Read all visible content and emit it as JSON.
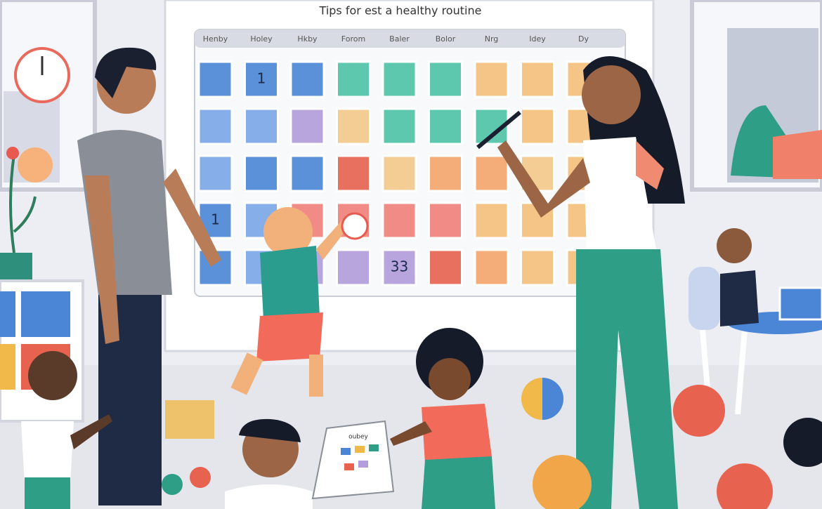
{
  "title": "Tips for est a healthy routine",
  "calendar": {
    "headers": [
      "Henby",
      "Holey",
      "Hkby",
      "Forom",
      "Baler",
      "Bolor",
      "Nrg",
      "Idey",
      "Dy"
    ],
    "cell_texts": [
      "1",
      "1",
      "33"
    ]
  },
  "card": {
    "title": "oubey"
  }
}
